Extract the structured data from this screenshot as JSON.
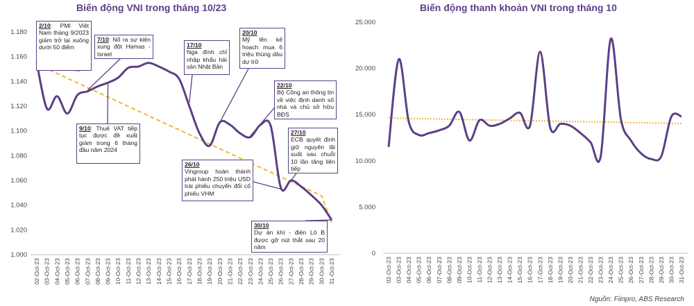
{
  "chart_data": [
    {
      "type": "line",
      "title": "Biến động VNI trong tháng 10/23",
      "categories": [
        "02-Oct-23",
        "03-Oct-23",
        "04-Oct-23",
        "05-Oct-23",
        "06-Oct-23",
        "07-Oct-23",
        "08-Oct-23",
        "09-Oct-23",
        "10-Oct-23",
        "11-Oct-23",
        "12-Oct-23",
        "13-Oct-23",
        "14-Oct-23",
        "15-Oct-23",
        "16-Oct-23",
        "17-Oct-23",
        "18-Oct-23",
        "19-Oct-23",
        "20-Oct-23",
        "21-Oct-23",
        "22-Oct-23",
        "23-Oct-23",
        "24-Oct-23",
        "25-Oct-23",
        "26-Oct-23",
        "27-Oct-23",
        "28-Oct-23",
        "29-Oct-23",
        "30-Oct-23",
        "31-Oct-23"
      ],
      "ylim": [
        1000,
        1180
      ],
      "yticks": [
        "1.000",
        "1.020",
        "1.040",
        "1.060",
        "1.080",
        "1.100",
        "1.120",
        "1.140",
        "1.160",
        "1.180"
      ],
      "colors": {
        "line": "#5b3f86",
        "trend": "#f2b632"
      },
      "series": [
        {
          "values": [
            1155,
            1118,
            1128,
            1114,
            1129,
            1132,
            1136,
            1139,
            1143,
            1151,
            1152,
            1155,
            1152,
            1148,
            1142,
            1120,
            1098,
            1088,
            1107,
            1105,
            1098,
            1095,
            1105,
            1104,
            1054,
            1060,
            1055,
            1048,
            1040,
            1028
          ]
        },
        {
          "values": [
            1154,
            1150.2,
            1146.4,
            1142.6,
            1138.8,
            1135.0,
            1131.2,
            1127.4,
            1123.6,
            1119.8,
            1116.0,
            1112.2,
            1108.4,
            1104.6,
            1100.8,
            1097.0,
            1093.2,
            1089.4,
            1085.6,
            1081.8,
            1078.0,
            1074.2,
            1070.4,
            1066.6,
            1062.8,
            1059.0,
            1055.2,
            1051.4,
            1047.6,
            1026
          ]
        }
      ],
      "annotations": [
        {
          "date": "2/10",
          "text": ": PMI Việt Nam tháng 9/2023 giảm trở lại xuống dưới 50 điểm"
        },
        {
          "date": "7/10",
          "text": ": Nổ ra sự kiện xung đột Hamas - Israel"
        },
        {
          "date": "9/10",
          "text": ": Thuế VAT tiếp tục được đề xuất giảm trong 6 tháng đầu năm 2024"
        },
        {
          "date": "17/10",
          "text": "Nga đình chỉ nhập khẩu hải sản Nhật Bản"
        },
        {
          "date": "20/10",
          "text": "Mỹ lên kế hoạch mua 6 triệu thùng dầu dự trữ"
        },
        {
          "date": "22/10",
          "text": "Bộ Công an thông tin về việc định danh số nhà và chủ sở hữu BĐS"
        },
        {
          "date": "26/10",
          "text": "Vingroup hoàn thành phát hành 250 triệu USD trái phiếu chuyển đổi cổ phiếu VHM"
        },
        {
          "date": "27/10",
          "text": "ECB quyết định giữ nguyên lãi suất sau chuỗi 10 lần tăng liên tiếp"
        },
        {
          "date": "30/10",
          "text": "Dự án khí - điện Lô B được gỡ nút thắt sau 20 năm"
        }
      ]
    },
    {
      "type": "line",
      "title": "Biến động thanh khoản VNI trong tháng 10",
      "categories": [
        "02-Oct-23",
        "03-Oct-23",
        "04-Oct-23",
        "05-Oct-23",
        "06-Oct-23",
        "07-Oct-23",
        "08-Oct-23",
        "09-Oct-23",
        "10-Oct-23",
        "11-Oct-23",
        "12-Oct-23",
        "13-Oct-23",
        "14-Oct-23",
        "15-Oct-23",
        "16-Oct-23",
        "17-Oct-23",
        "18-Oct-23",
        "19-Oct-23",
        "20-Oct-23",
        "21-Oct-23",
        "22-Oct-23",
        "23-Oct-23",
        "24-Oct-23",
        "25-Oct-23",
        "26-Oct-23",
        "27-Oct-23",
        "28-Oct-23",
        "29-Oct-23",
        "30-Oct-23",
        "31-Oct-23"
      ],
      "ylim": [
        0,
        25000
      ],
      "yticks": [
        "0",
        "5.000",
        "10.000",
        "15.000",
        "20.000",
        "25.000"
      ],
      "colors": {
        "line": "#5b3f86",
        "trend": "#f2b632"
      },
      "series": [
        {
          "values": [
            11500,
            21000,
            14200,
            12800,
            13000,
            13300,
            13800,
            15300,
            12200,
            14400,
            13800,
            14000,
            14600,
            15200,
            13800,
            21800,
            13600,
            14000,
            13800,
            13000,
            12000,
            10500,
            23200,
            14500,
            12200,
            10800,
            10200,
            10500,
            14800,
            14800
          ]
        },
        {
          "values": [
            14700,
            14600,
            14580,
            14560,
            14540,
            14520,
            14500,
            14480,
            14460,
            14440,
            14420,
            14400,
            14380,
            14360,
            14340,
            14320,
            14300,
            14280,
            14260,
            14240,
            14220,
            14200,
            14180,
            14160,
            14140,
            14120,
            14100,
            14080,
            14060,
            14040
          ]
        }
      ]
    }
  ],
  "source": "Nguồn: Fiinpro, ABS Research"
}
